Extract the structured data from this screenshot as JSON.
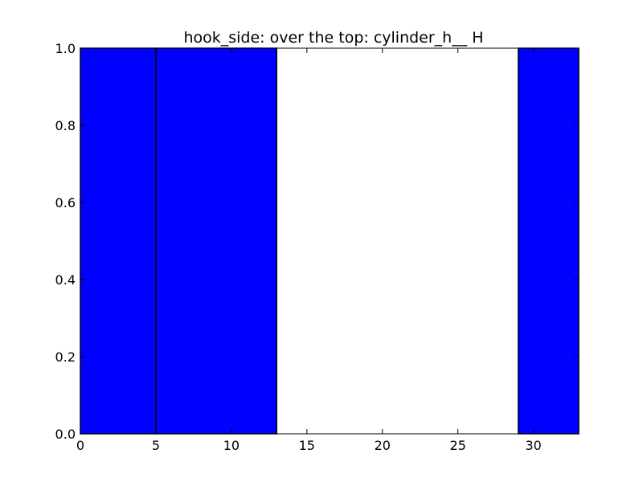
{
  "chart_data": {
    "type": "bar",
    "title": "hook_side: over the top: cylinder_h__ H",
    "xlabel": "",
    "ylabel": "",
    "xlim": [
      0,
      33
    ],
    "ylim": [
      0,
      1
    ],
    "grid": false,
    "bar_color": "#0000ff",
    "bar_edge_color": "#000000",
    "x_ticks": [
      0,
      5,
      10,
      15,
      20,
      25,
      30
    ],
    "y_ticks": [
      0.0,
      0.2,
      0.4,
      0.6,
      0.8,
      1.0
    ],
    "x_tick_labels": [
      "0",
      "5",
      "10",
      "15",
      "20",
      "25",
      "30"
    ],
    "y_tick_labels": [
      "0.0",
      "0.2",
      "0.4",
      "0.6",
      "0.8",
      "1.0"
    ],
    "bars": [
      {
        "x_start": 0,
        "x_end": 5,
        "value": 1
      },
      {
        "x_start": 5,
        "x_end": 13,
        "value": 1
      },
      {
        "x_start": 29,
        "x_end": 33,
        "value": 1
      }
    ]
  }
}
